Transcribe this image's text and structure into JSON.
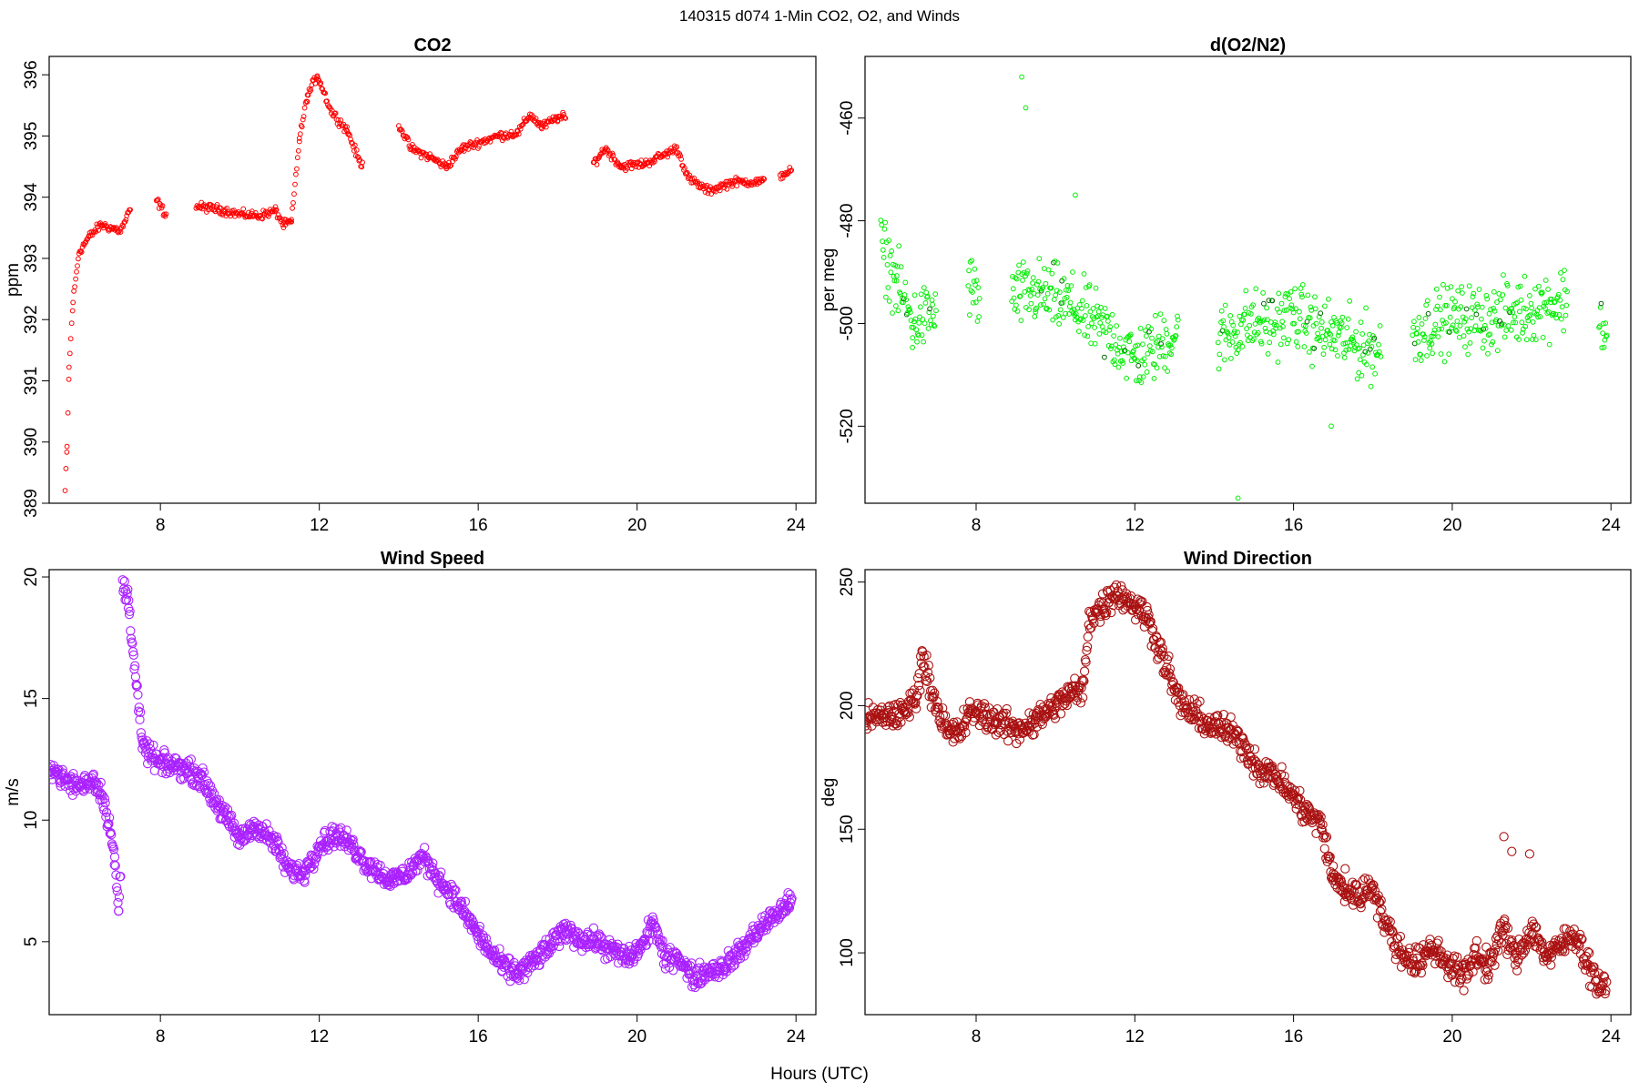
{
  "figure": {
    "supertitle": "140315   d074   1-Min CO2, O2, and Winds",
    "xlabel": "Hours (UTC)"
  },
  "chart_data": [
    {
      "id": "co2",
      "type": "scatter",
      "title": "CO2",
      "xlabel": "",
      "ylabel": "ppm",
      "xlim": [
        5.2,
        24.5
      ],
      "ylim": [
        389,
        396.3
      ],
      "xticks": [
        8,
        12,
        16,
        20,
        24
      ],
      "yticks": [
        389,
        390,
        391,
        392,
        393,
        394,
        395,
        396
      ],
      "color": "#ff0000",
      "marker_radius_class": "small",
      "anchors": [
        [
          5.6,
          389.2
        ],
        [
          5.65,
          389.9
        ],
        [
          5.7,
          391.2
        ],
        [
          5.8,
          392.3
        ],
        [
          5.95,
          393.1
        ],
        [
          6.2,
          393.35
        ],
        [
          6.5,
          393.55
        ],
        [
          7.0,
          393.45
        ],
        [
          7.25,
          393.8
        ],
        [
          null,
          null
        ],
        [
          7.9,
          393.95
        ],
        [
          8.15,
          393.7
        ],
        [
          null,
          null
        ],
        [
          8.9,
          393.85
        ],
        [
          9.5,
          393.8
        ],
        [
          10.0,
          393.72
        ],
        [
          10.5,
          393.7
        ],
        [
          10.9,
          393.78
        ],
        [
          11.1,
          393.55
        ],
        [
          11.3,
          393.6
        ],
        [
          11.5,
          394.95
        ],
        [
          11.7,
          395.65
        ],
        [
          11.95,
          396.0
        ],
        [
          12.3,
          395.4
        ],
        [
          12.7,
          395.1
        ],
        [
          13.0,
          394.6
        ],
        [
          13.1,
          394.5
        ],
        [
          null,
          null
        ],
        [
          14.0,
          395.2
        ],
        [
          14.3,
          394.8
        ],
        [
          14.8,
          394.65
        ],
        [
          15.2,
          394.5
        ],
        [
          15.6,
          394.8
        ],
        [
          16.5,
          395.0
        ],
        [
          17.0,
          395.05
        ],
        [
          17.3,
          395.35
        ],
        [
          17.6,
          395.15
        ],
        [
          18.0,
          395.3
        ],
        [
          18.2,
          395.3
        ],
        [
          null,
          null
        ],
        [
          18.9,
          394.55
        ],
        [
          19.2,
          394.8
        ],
        [
          19.6,
          394.5
        ],
        [
          20.2,
          394.55
        ],
        [
          20.7,
          394.7
        ],
        [
          21.0,
          394.8
        ],
        [
          21.3,
          394.3
        ],
        [
          21.8,
          394.1
        ],
        [
          22.4,
          394.25
        ],
        [
          23.0,
          394.25
        ],
        [
          23.2,
          394.25
        ],
        [
          null,
          null
        ],
        [
          23.6,
          394.35
        ],
        [
          23.9,
          394.45
        ]
      ],
      "noise": 0.06,
      "step": 0.022
    },
    {
      "id": "o2",
      "type": "scatter",
      "title": "d(O2/N2)",
      "xlabel": "",
      "ylabel": "per meg",
      "xlim": [
        5.2,
        24.5
      ],
      "ylim": [
        -535,
        -448
      ],
      "xticks": [
        8,
        12,
        16,
        20,
        24
      ],
      "yticks": [
        -520,
        -500,
        -480,
        -460
      ],
      "color": "#00ee00",
      "accent_color": "#006600",
      "marker_radius_class": "small",
      "anchors": [
        [
          5.6,
          -485
        ],
        [
          6.0,
          -492
        ],
        [
          6.4,
          -500
        ],
        [
          6.9,
          -498
        ],
        [
          7.0,
          -498
        ],
        [
          null,
          null
        ],
        [
          7.8,
          -492
        ],
        [
          8.1,
          -496
        ],
        [
          null,
          null
        ],
        [
          8.9,
          -495
        ],
        [
          9.5,
          -494
        ],
        [
          10.0,
          -495
        ],
        [
          10.5,
          -497
        ],
        [
          11.0,
          -500
        ],
        [
          11.5,
          -503
        ],
        [
          12.0,
          -507
        ],
        [
          12.5,
          -505
        ],
        [
          13.0,
          -502
        ],
        [
          13.1,
          -502
        ],
        [
          null,
          null
        ],
        [
          14.1,
          -503
        ],
        [
          14.8,
          -500
        ],
        [
          15.5,
          -500
        ],
        [
          16.0,
          -498
        ],
        [
          16.5,
          -501
        ],
        [
          17.0,
          -502
        ],
        [
          17.5,
          -504
        ],
        [
          18.0,
          -505
        ],
        [
          18.2,
          -505
        ],
        [
          null,
          null
        ],
        [
          19.0,
          -502
        ],
        [
          19.5,
          -500
        ],
        [
          20.0,
          -499
        ],
        [
          20.5,
          -499
        ],
        [
          21.0,
          -499
        ],
        [
          21.5,
          -498
        ],
        [
          22.0,
          -497
        ],
        [
          22.5,
          -496
        ],
        [
          22.9,
          -495
        ],
        [
          null,
          null
        ],
        [
          23.7,
          -498
        ],
        [
          23.9,
          -503
        ]
      ],
      "noise": 5.5,
      "step": 0.018,
      "outliers": [
        [
          9.15,
          -452
        ],
        [
          9.25,
          -458
        ],
        [
          14.6,
          -534
        ],
        [
          16.95,
          -520
        ],
        [
          10.5,
          -475
        ]
      ]
    },
    {
      "id": "wind_speed",
      "type": "scatter",
      "title": "Wind Speed",
      "xlabel": "",
      "ylabel": "m/s",
      "xlim": [
        5.2,
        24.5
      ],
      "ylim": [
        2,
        20.3
      ],
      "xticks": [
        8,
        12,
        16,
        20,
        24
      ],
      "yticks": [
        5,
        10,
        15,
        20
      ],
      "color": "#aa22ff",
      "marker_radius_class": "large",
      "anchors": [
        [
          5.2,
          12.3
        ],
        [
          5.6,
          11.6
        ],
        [
          6.0,
          11.4
        ],
        [
          6.3,
          11.7
        ],
        [
          6.5,
          11.2
        ],
        [
          6.7,
          10.0
        ],
        [
          6.85,
          8.3
        ],
        [
          6.95,
          6.2
        ],
        [
          7.0,
          8.0
        ],
        [
          null,
          null
        ],
        [
          7.05,
          19.7
        ],
        [
          7.2,
          19.0
        ],
        [
          7.4,
          15.5
        ],
        [
          7.55,
          13.0
        ],
        [
          8.0,
          12.3
        ],
        [
          8.5,
          12.2
        ],
        [
          9.0,
          11.8
        ],
        [
          9.5,
          10.5
        ],
        [
          10.0,
          9.2
        ],
        [
          10.4,
          9.8
        ],
        [
          10.9,
          9.0
        ],
        [
          11.2,
          8.0
        ],
        [
          11.6,
          7.8
        ],
        [
          12.0,
          9.0
        ],
        [
          12.4,
          9.4
        ],
        [
          12.8,
          9.0
        ],
        [
          13.2,
          8.2
        ],
        [
          13.8,
          7.5
        ],
        [
          14.2,
          7.8
        ],
        [
          14.6,
          8.5
        ],
        [
          15.0,
          7.6
        ],
        [
          15.4,
          6.8
        ],
        [
          15.8,
          5.8
        ],
        [
          16.2,
          4.8
        ],
        [
          16.6,
          4.0
        ],
        [
          17.0,
          3.7
        ],
        [
          17.4,
          4.2
        ],
        [
          17.8,
          4.8
        ],
        [
          18.2,
          5.5
        ],
        [
          18.6,
          5.1
        ],
        [
          19.0,
          5.0
        ],
        [
          19.4,
          4.6
        ],
        [
          19.8,
          4.3
        ],
        [
          20.2,
          5.0
        ],
        [
          20.4,
          5.9
        ],
        [
          20.7,
          4.2
        ],
        [
          21.0,
          4.5
        ],
        [
          21.4,
          3.5
        ],
        [
          21.8,
          3.8
        ],
        [
          22.2,
          4.0
        ],
        [
          22.6,
          4.6
        ],
        [
          23.0,
          5.4
        ],
        [
          23.4,
          6.0
        ],
        [
          23.8,
          6.5
        ],
        [
          23.9,
          7.0
        ]
      ],
      "noise": 0.38,
      "step": 0.016
    },
    {
      "id": "wind_dir",
      "type": "scatter",
      "title": "Wind Direction",
      "xlabel": "",
      "ylabel": "deg",
      "xlim": [
        5.2,
        24.5
      ],
      "ylim": [
        75,
        255
      ],
      "xticks": [
        8,
        12,
        16,
        20,
        24
      ],
      "yticks": [
        100,
        150,
        200,
        250
      ],
      "color": "#aa1111",
      "marker_radius_class": "large",
      "anchors": [
        [
          5.2,
          194
        ],
        [
          5.8,
          196
        ],
        [
          6.2,
          197
        ],
        [
          6.5,
          205
        ],
        [
          6.65,
          220
        ],
        [
          6.9,
          205
        ],
        [
          7.3,
          188
        ],
        [
          7.6,
          190
        ],
        [
          7.9,
          198
        ],
        [
          8.5,
          194
        ],
        [
          9.0,
          190
        ],
        [
          9.5,
          194
        ],
        [
          10.0,
          200
        ],
        [
          10.4,
          205
        ],
        [
          10.7,
          206
        ],
        [
          10.85,
          236
        ],
        [
          11.2,
          240
        ],
        [
          11.5,
          246
        ],
        [
          11.9,
          242
        ],
        [
          12.3,
          236
        ],
        [
          12.7,
          220
        ],
        [
          13.1,
          202
        ],
        [
          13.5,
          196
        ],
        [
          13.9,
          192
        ],
        [
          14.3,
          190
        ],
        [
          14.7,
          185
        ],
        [
          15.1,
          175
        ],
        [
          15.5,
          172
        ],
        [
          15.9,
          165
        ],
        [
          16.3,
          157
        ],
        [
          16.7,
          152
        ],
        [
          17.0,
          130
        ],
        [
          17.3,
          125
        ],
        [
          17.7,
          123
        ],
        [
          18.0,
          128
        ],
        [
          18.3,
          112
        ],
        [
          18.7,
          100
        ],
        [
          19.1,
          96
        ],
        [
          19.5,
          102
        ],
        [
          19.9,
          96
        ],
        [
          20.3,
          90
        ],
        [
          20.6,
          100
        ],
        [
          20.9,
          94
        ],
        [
          21.3,
          110
        ],
        [
          21.6,
          97
        ],
        [
          22.0,
          110
        ],
        [
          22.4,
          98
        ],
        [
          22.8,
          104
        ],
        [
          23.1,
          108
        ],
        [
          23.4,
          96
        ],
        [
          23.7,
          87
        ],
        [
          23.9,
          84
        ]
      ],
      "noise": 5.0,
      "step": 0.017,
      "outliers": [
        [
          21.3,
          147
        ],
        [
          21.5,
          141
        ],
        [
          21.95,
          140
        ],
        [
          17.0,
          132
        ],
        [
          17.3,
          134
        ]
      ]
    }
  ]
}
